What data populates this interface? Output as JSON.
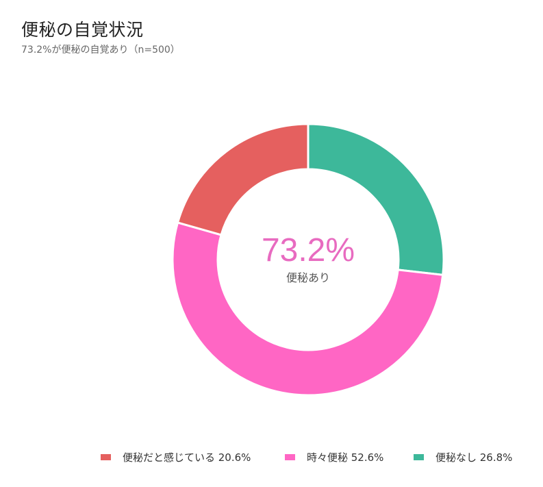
{
  "header": {
    "title": "便秘の自覚状況",
    "subtitle": "73.2%が便秘の自覚あり（n=500）"
  },
  "center": {
    "value": "73.2%",
    "label": "便秘あり",
    "value_color": "#E86BC0"
  },
  "legend": [
    {
      "label": "便秘だと感じている 20.6%",
      "color": "#E5605F"
    },
    {
      "label": "時々便秘 52.6%",
      "color": "#FF66C4"
    },
    {
      "label": "便秘なし 26.8%",
      "color": "#3DB89A"
    }
  ],
  "chart_data": {
    "type": "pie",
    "subtype": "donut",
    "title": "便秘の自覚状況",
    "subtitle": "73.2%が便秘の自覚あり（n=500）",
    "categories": [
      "便秘なし",
      "時々便秘",
      "便秘だと感じている"
    ],
    "values": [
      26.8,
      52.6,
      20.6
    ],
    "colors": [
      "#3DB89A",
      "#FF66C4",
      "#E5605F"
    ],
    "unit": "%",
    "n": 500,
    "start_angle": "12 o'clock, clockwise",
    "center_annotation": {
      "value": "73.2%",
      "label": "便秘あり"
    },
    "legend_position": "bottom"
  }
}
